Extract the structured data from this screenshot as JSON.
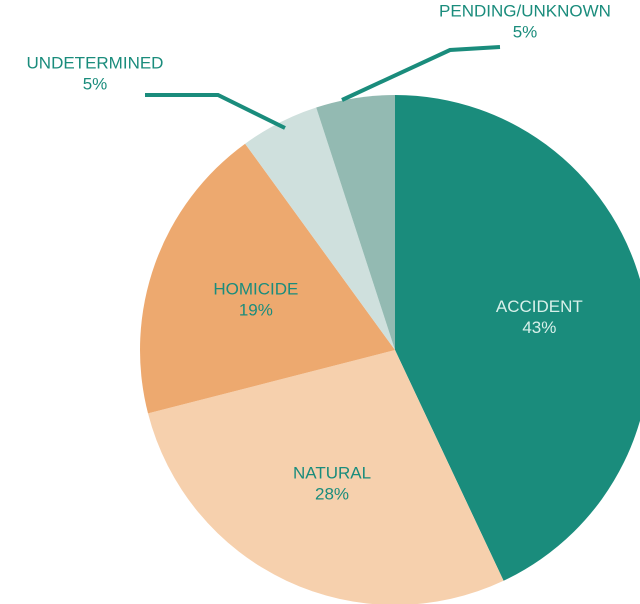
{
  "chart_data": {
    "type": "pie",
    "categories": [
      "ACCIDENT",
      "NATURAL",
      "HOMICIDE",
      "UNDETERMINED",
      "PENDING/UNKNOWN"
    ],
    "values": [
      43,
      28,
      19,
      5,
      5
    ],
    "value_labels": [
      "43%",
      "28%",
      "19%",
      "5%",
      "5%"
    ],
    "colors": [
      "#1a8c7c",
      "#f6d0ad",
      "#eda96f",
      "#cfe0dd",
      "#93bab2"
    ]
  }
}
